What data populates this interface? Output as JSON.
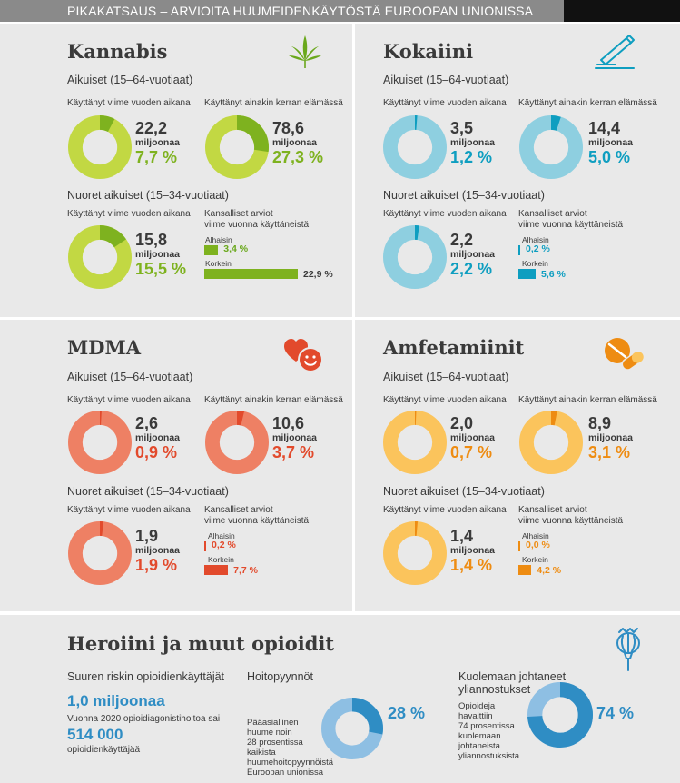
{
  "header": {
    "title": "PIKAKATSAUS – ARVIOITA HUUMEIDENKÄYTÖSTÄ EUROOPAN UNIONISSA"
  },
  "colors": {
    "cannabis": "#7eb21f",
    "cannabis_light": "#c2d843",
    "cocaine": "#0e9ec0",
    "cocaine_light": "#8ecfe0",
    "mdma": "#e24a2c",
    "mdma_light": "#ee8064",
    "amph": "#ee8c12",
    "amph_light": "#fbc45c",
    "heroin": "#2f8dc4",
    "heroin_light": "#8ebfe3"
  },
  "kannabis": {
    "title": "Kannabis",
    "adults_label": "Aikuiset (15–64-vuotiaat)",
    "young_label": "Nuoret aikuiset (15–34-vuotiaat)",
    "last_year_label": "Käyttänyt viime vuoden aikana",
    "lifetime_label": "Käyttänyt ainakin kerran elämässä",
    "national_label_1": "Kansalliset arviot",
    "national_label_2": "viime vuonna käyttäneistä",
    "unit": "miljoonaa",
    "adult_last_year": {
      "count": "22,2",
      "percent": "7,7 %"
    },
    "adult_lifetime": {
      "count": "78,6",
      "percent": "27,3 %"
    },
    "young_last_year": {
      "count": "15,8",
      "percent": "15,5 %"
    },
    "low_label": "Alhaisin",
    "low_value": "3,4 %",
    "high_label": "Korkein",
    "high_value": "22,9 %"
  },
  "kokaiini": {
    "title": "Kokaiini",
    "adults_label": "Aikuiset (15–64-vuotiaat)",
    "young_label": "Nuoret aikuiset (15–34-vuotiaat)",
    "last_year_label": "Käyttänyt viime vuoden aikana",
    "lifetime_label": "Käyttänyt ainakin kerran elämässä",
    "national_label_1": "Kansalliset arviot",
    "national_label_2": "viime vuonna käyttäneistä",
    "unit": "miljoonaa",
    "adult_last_year": {
      "count": "3,5",
      "percent": "1,2 %"
    },
    "adult_lifetime": {
      "count": "14,4",
      "percent": "5,0 %"
    },
    "young_last_year": {
      "count": "2,2",
      "percent": "2,2 %"
    },
    "low_label": "Alhaisin",
    "low_value": "0,2 %",
    "high_label": "Korkein",
    "high_value": "5,6 %"
  },
  "mdma": {
    "title": "MDMA",
    "adults_label": "Aikuiset (15–64-vuotiaat)",
    "young_label": "Nuoret aikuiset (15–34-vuotiaat)",
    "last_year_label": "Käyttänyt viime vuoden aikana",
    "lifetime_label": "Käyttänyt ainakin kerran elämässä",
    "national_label_1": "Kansalliset arviot",
    "national_label_2": "viime vuonna käyttäneistä",
    "unit": "miljoonaa",
    "adult_last_year": {
      "count": "2,6",
      "percent": "0,9 %"
    },
    "adult_lifetime": {
      "count": "10,6",
      "percent": "3,7 %"
    },
    "young_last_year": {
      "count": "1,9",
      "percent": "1,9 %"
    },
    "low_label": "Alhaisin",
    "low_value": "0,2 %",
    "high_label": "Korkein",
    "high_value": "7,7 %"
  },
  "amfetamiinit": {
    "title": "Amfetamiinit",
    "adults_label": "Aikuiset (15–64-vuotiaat)",
    "young_label": "Nuoret aikuiset (15–34-vuotiaat)",
    "last_year_label": "Käyttänyt viime vuoden aikana",
    "lifetime_label": "Käyttänyt ainakin kerran elämässä",
    "national_label_1": "Kansalliset arviot",
    "national_label_2": "viime vuonna käyttäneistä",
    "unit": "miljoonaa",
    "adult_last_year": {
      "count": "2,0",
      "percent": "0,7 %"
    },
    "adult_lifetime": {
      "count": "8,9",
      "percent": "3,1 %"
    },
    "young_last_year": {
      "count": "1,4",
      "percent": "1,4 %"
    },
    "low_label": "Alhaisin",
    "low_value": "0,0 %",
    "high_label": "Korkein",
    "high_value": "4,2 %"
  },
  "heroiini": {
    "title": "Heroiini ja muut opioidit",
    "high_risk_label": "Suuren riskin opioidienkäyttäjät",
    "high_risk_value": "1,0 miljoonaa",
    "treatment_note": "Vuonna 2020 opioidiagonistihoitoa sai",
    "treatment_value": "514 000",
    "treatment_unit": "opioidienkäyttäjää",
    "hoito_title": "Hoitopyynnöt",
    "hoito_text": [
      "Pääasiallinen",
      "huume noin",
      "28 prosentissa",
      "kaikista",
      "huumehoitopyynnöistä",
      "Euroopan unionissa"
    ],
    "hoito_percent": "28 %",
    "deaths_title_1": "Kuolemaan johtaneet",
    "deaths_title_2": "yliannostukset",
    "deaths_text": [
      "Opioideja",
      "havaittiin",
      "74 prosentissa",
      "kuolemaan",
      "johtaneista",
      "yliannostuksista"
    ],
    "deaths_percent": "74 %"
  },
  "chart_data": [
    {
      "type": "pie",
      "title": "Kannabis",
      "series": [
        {
          "name": "Käyttänyt viime vuoden aikana",
          "group": "Aikuiset (15–64-vuotiaat)",
          "value": 7.7
        },
        {
          "name": "Käyttänyt ainakin kerran elämässä",
          "group": "Aikuiset (15–64-vuotiaat)",
          "value": 27.3
        },
        {
          "name": "Käyttänyt viime vuoden aikana",
          "group": "Nuoret aikuiset (15–34-vuotiaat)",
          "value": 15.5
        }
      ]
    },
    {
      "type": "bar",
      "title": "Kannabis",
      "categories": [
        "Alhaisin",
        "Korkein"
      ],
      "values": [
        3.4,
        22.9
      ]
    },
    {
      "type": "pie",
      "title": "Kokaiini",
      "series": [
        {
          "name": "Käyttänyt viime vuoden aikana",
          "group": "Aikuiset (15–64-vuotiaat)",
          "value": 1.2
        },
        {
          "name": "Käyttänyt ainakin kerran elämässä",
          "group": "Aikuiset (15–64-vuotiaat)",
          "value": 5.0
        },
        {
          "name": "Käyttänyt viime vuoden aikana",
          "group": "Nuoret aikuiset (15–34-vuotiaat)",
          "value": 2.2
        }
      ]
    },
    {
      "type": "bar",
      "title": "Kokaiini",
      "categories": [
        "Alhaisin",
        "Korkein"
      ],
      "values": [
        0.2,
        5.6
      ]
    },
    {
      "type": "pie",
      "title": "MDMA",
      "series": [
        {
          "name": "Käyttänyt viime vuoden aikana",
          "group": "Aikuiset (15–64-vuotiaat)",
          "value": 0.9
        },
        {
          "name": "Käyttänyt ainakin kerran elämässä",
          "group": "Aikuiset (15–64-vuotiaat)",
          "value": 3.7
        },
        {
          "name": "Käyttänyt viime vuoden aikana",
          "group": "Nuoret aikuiset (15–34-vuotiaat)",
          "value": 1.9
        }
      ]
    },
    {
      "type": "bar",
      "title": "MDMA",
      "categories": [
        "Alhaisin",
        "Korkein"
      ],
      "values": [
        0.2,
        7.7
      ]
    },
    {
      "type": "pie",
      "title": "Amfetamiinit",
      "series": [
        {
          "name": "Käyttänyt viime vuoden aikana",
          "group": "Aikuiset (15–64-vuotiaat)",
          "value": 0.7
        },
        {
          "name": "Käyttänyt ainakin kerran elämässä",
          "group": "Aikuiset (15–64-vuotiaat)",
          "value": 3.1
        },
        {
          "name": "Käyttänyt viime vuoden aikana",
          "group": "Nuoret aikuiset (15–34-vuotiaat)",
          "value": 1.4
        }
      ]
    },
    {
      "type": "bar",
      "title": "Amfetamiinit",
      "categories": [
        "Alhaisin",
        "Korkein"
      ],
      "values": [
        0.0,
        4.2
      ]
    },
    {
      "type": "pie",
      "title": "Hoitopyynnöt",
      "value": 28
    },
    {
      "type": "pie",
      "title": "Kuolemaan johtaneet yliannostukset",
      "value": 74
    }
  ]
}
